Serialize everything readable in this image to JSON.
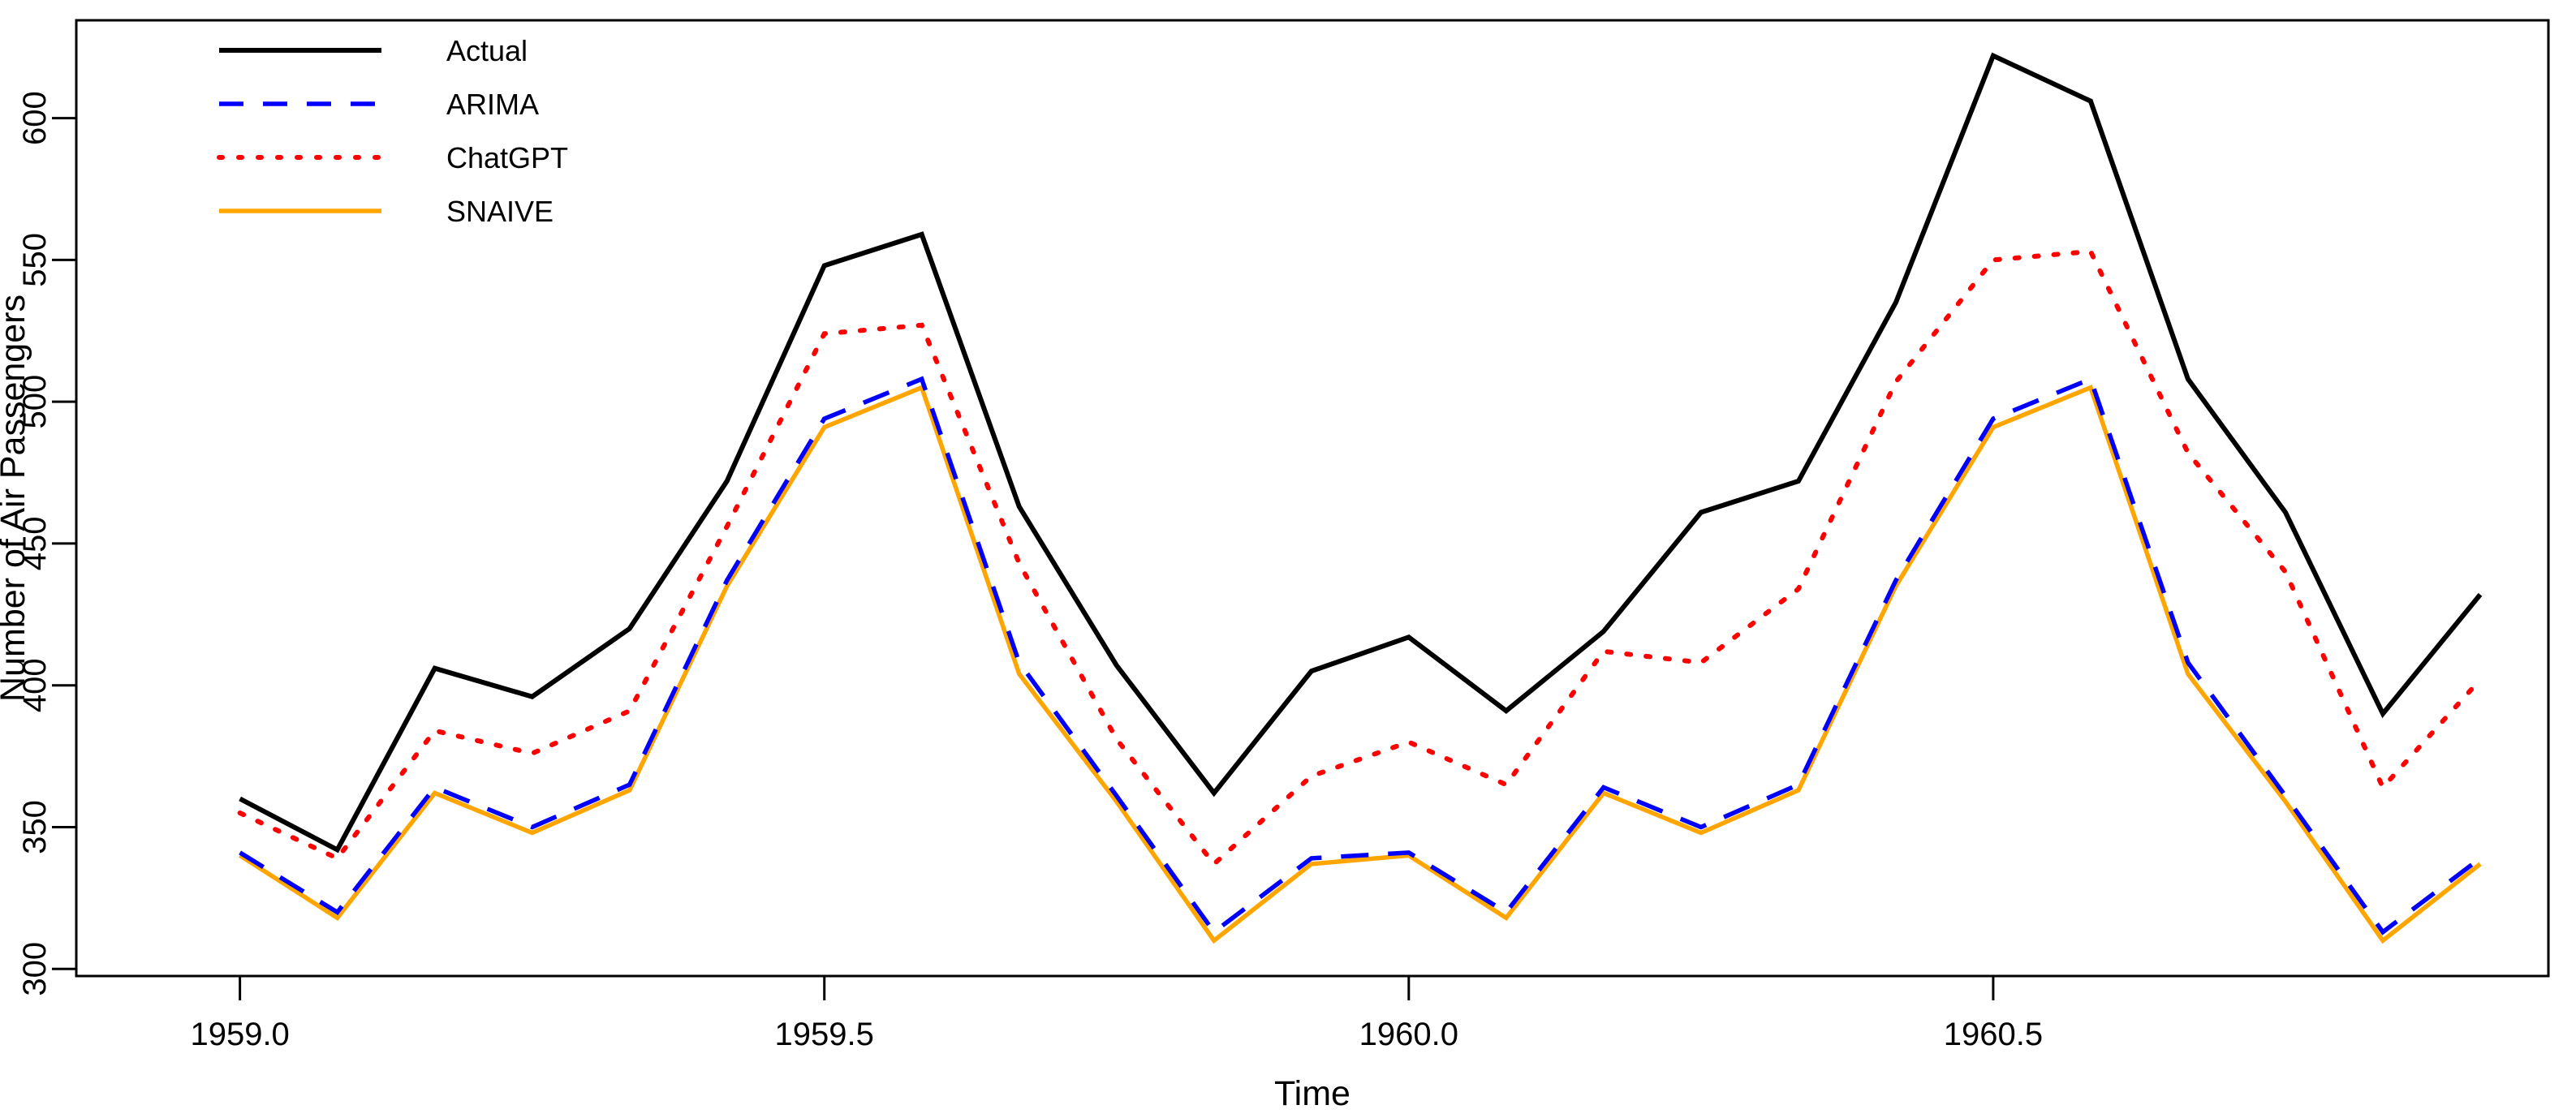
{
  "chart_data": {
    "type": "line",
    "title": "",
    "xlabel": "Time",
    "ylabel": "Number of Air Passengers",
    "x_start_year": 1959.0,
    "x_step_years": 0.0833333,
    "xlim": [
      1958.86,
      1960.975
    ],
    "ylim": [
      297.5,
      634.5
    ],
    "grid": false,
    "legend_position": "top-left",
    "xticks": {
      "values": [
        1959.0,
        1959.5,
        1960.0,
        1960.5
      ],
      "labels": [
        "1959.0",
        "1959.5",
        "1960.0",
        "1960.5"
      ]
    },
    "yticks": {
      "values": [
        300,
        350,
        400,
        450,
        500,
        550,
        600
      ],
      "labels": [
        "300",
        "350",
        "400",
        "450",
        "500",
        "550",
        "600"
      ]
    },
    "series": [
      {
        "name": "Actual",
        "color": "#000000",
        "style": "solid",
        "values": [
          360,
          342,
          406,
          396,
          420,
          472,
          548,
          559,
          463,
          407,
          362,
          405,
          417,
          391,
          419,
          461,
          472,
          535,
          622,
          606,
          508,
          461,
          390,
          432
        ]
      },
      {
        "name": "ARIMA",
        "color": "#0000FF",
        "style": "dashed",
        "values": [
          341,
          320,
          364,
          350,
          365,
          437,
          494,
          508,
          408,
          361,
          313,
          339,
          341,
          320,
          364,
          350,
          365,
          437,
          494,
          508,
          408,
          361,
          313,
          339
        ]
      },
      {
        "name": "ChatGPT",
        "color": "#FF0000",
        "style": "dotted",
        "values": [
          355,
          339,
          384,
          376,
          391,
          456,
          524,
          527,
          443,
          381,
          337,
          368,
          380,
          365,
          412,
          408,
          434,
          507,
          550,
          553,
          482,
          440,
          364,
          402
        ]
      },
      {
        "name": "SNAIVE",
        "color": "#FFA500",
        "style": "solid",
        "values": [
          340,
          318,
          362,
          348,
          363,
          435,
          491,
          505,
          404,
          359,
          310,
          337,
          340,
          318,
          362,
          348,
          363,
          435,
          491,
          505,
          404,
          359,
          310,
          337
        ]
      }
    ]
  }
}
